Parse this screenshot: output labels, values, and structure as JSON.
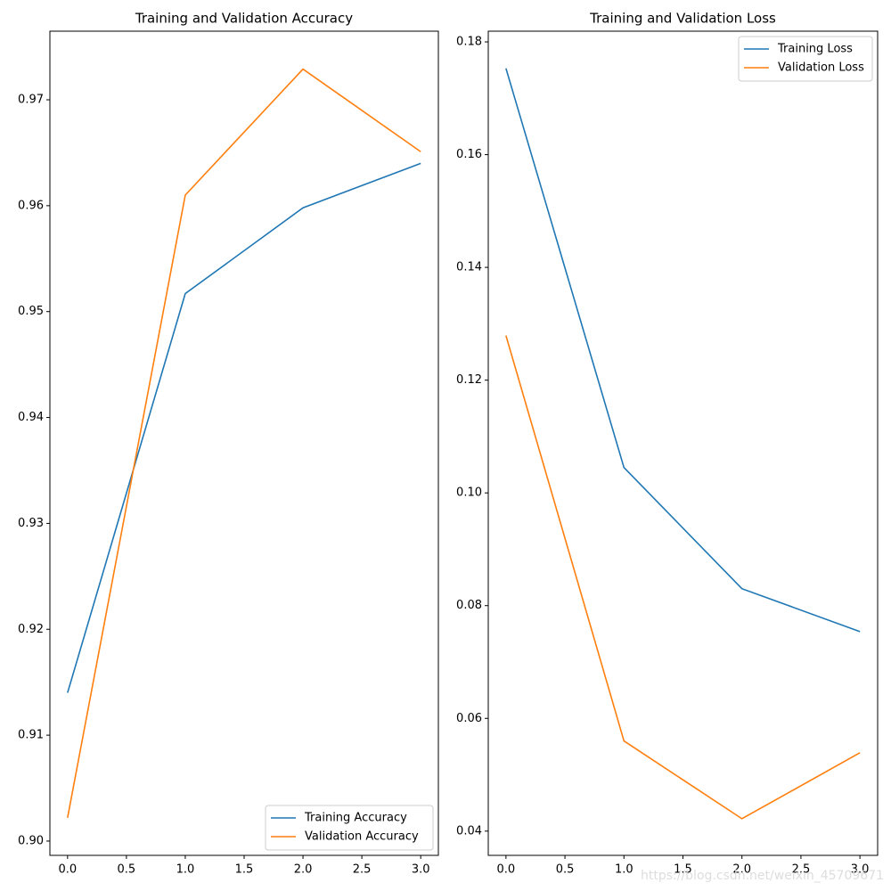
{
  "chart_data": [
    {
      "type": "line",
      "title": "Training and Validation Accuracy",
      "x": [
        0,
        1,
        2,
        3
      ],
      "series": [
        {
          "name": "Training Accuracy",
          "color": "#1f77b4",
          "values": [
            0.914,
            0.9517,
            0.9598,
            0.964
          ]
        },
        {
          "name": "Validation Accuracy",
          "color": "#ff7f0e",
          "values": [
            0.9022,
            0.961,
            0.9729,
            0.9651
          ]
        }
      ],
      "xlim": [
        -0.15,
        3.15
      ],
      "xticks": [
        {
          "value": 0,
          "label": "0.0"
        },
        0.5,
        {
          "value": 1,
          "label": "1.0"
        },
        1.5,
        {
          "value": 2,
          "label": "2.0"
        },
        2.5,
        {
          "value": 3,
          "label": "3.0"
        }
      ],
      "ylim": [
        0.89865,
        0.97648
      ],
      "yticks": [
        {
          "value": 0.9,
          "label": "0.90"
        },
        0.91,
        0.92,
        0.93,
        0.94,
        0.95,
        0.96,
        0.97
      ],
      "legend": "lower right"
    },
    {
      "type": "line",
      "title": "Training and Validation Loss",
      "x": [
        0,
        1,
        2,
        3
      ],
      "series": [
        {
          "name": "Training Loss",
          "color": "#1f77b4",
          "values": [
            0.1753,
            0.1045,
            0.083,
            0.0754
          ]
        },
        {
          "name": "Validation Loss",
          "color": "#ff7f0e",
          "values": [
            0.1279,
            0.056,
            0.0422,
            0.0539
          ]
        }
      ],
      "xlim": [
        -0.15,
        3.15
      ],
      "xticks": [
        {
          "value": 0,
          "label": "0.0"
        },
        0.5,
        {
          "value": 1,
          "label": "1.0"
        },
        1.5,
        {
          "value": 2,
          "label": "2.0"
        },
        2.5,
        {
          "value": 3,
          "label": "3.0"
        }
      ],
      "ylim": [
        0.0357,
        0.1819
      ],
      "yticks": [
        0.04,
        0.06,
        0.08,
        {
          "value": 0.1,
          "label": "0.10"
        },
        0.12,
        0.14,
        0.16,
        0.18
      ],
      "legend": "upper right",
      "watermark": "https://blog.csdn.net/weixin_45709671"
    }
  ]
}
